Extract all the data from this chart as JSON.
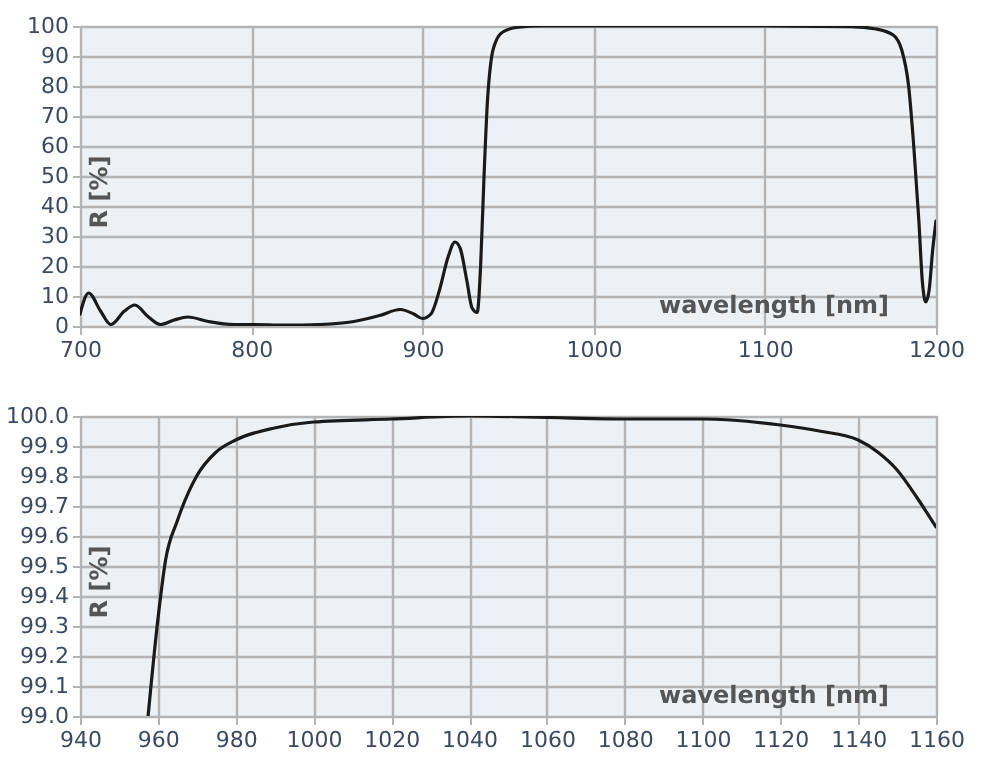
{
  "chart_data": [
    {
      "type": "line",
      "xlabel": "wavelength [nm]",
      "ylabel": "R [%]",
      "xlim": [
        700,
        1200
      ],
      "ylim": [
        0,
        100
      ],
      "xticks": [
        700,
        800,
        900,
        1000,
        1100,
        1200
      ],
      "yticks": [
        0,
        10,
        20,
        30,
        40,
        50,
        60,
        70,
        80,
        90,
        100
      ],
      "grid": true,
      "line_style": "solid",
      "marker": "none",
      "series": [
        {
          "color": "#1a1a1a",
          "x": [
            700,
            705,
            712,
            718,
            726,
            732,
            740,
            747,
            755,
            763,
            775,
            790,
            800,
            820,
            840,
            860,
            875,
            887,
            895,
            900,
            905,
            910,
            915,
            919,
            922,
            926,
            929,
            932,
            934,
            936,
            938,
            940,
            943,
            947,
            955,
            970,
            1100,
            1150,
            1165,
            1175,
            1180,
            1184,
            1187,
            1190,
            1192,
            1194,
            1196,
            1198,
            1200
          ],
          "values": [
            4,
            11,
            5,
            0.5,
            5,
            7,
            3,
            0.5,
            2,
            3,
            1.5,
            0.5,
            0.5,
            0.3,
            0.5,
            1.5,
            3.5,
            5.5,
            4,
            2.5,
            4,
            12,
            23,
            28,
            26,
            15,
            6,
            4.5,
            20,
            50,
            75,
            88,
            95,
            98,
            99.5,
            100,
            100,
            99.8,
            99,
            97,
            92,
            80,
            60,
            35,
            15,
            8,
            12,
            25,
            35
          ]
        }
      ]
    },
    {
      "type": "line",
      "xlabel": "wavelength [nm]",
      "ylabel": "R [%]",
      "xlim": [
        940,
        1160
      ],
      "ylim": [
        99.0,
        100.0
      ],
      "xticks": [
        940,
        960,
        980,
        1000,
        1020,
        1040,
        1060,
        1080,
        1100,
        1120,
        1140,
        1160
      ],
      "yticks": [
        {
          "value": 99.0,
          "label": "99.0"
        },
        99.1,
        99.2,
        99.3,
        99.4,
        99.5,
        99.6,
        99.7,
        99.8,
        99.9,
        {
          "value": 100.0,
          "label": "100.0"
        }
      ],
      "grid": true,
      "line_style": "solid",
      "marker": "none",
      "series": [
        {
          "color": "#1a1a1a",
          "x": [
            957.5,
            960,
            962,
            965,
            970,
            975,
            980,
            990,
            1000,
            1020,
            1040,
            1080,
            1100,
            1120,
            1130,
            1140,
            1145,
            1150,
            1155,
            1160
          ],
          "values": [
            99.0,
            99.32,
            99.52,
            99.65,
            99.8,
            99.88,
            99.92,
            99.96,
            99.98,
            99.99,
            100.0,
            99.99,
            99.99,
            99.97,
            99.95,
            99.92,
            99.88,
            99.82,
            99.73,
            99.63
          ]
        }
      ]
    }
  ]
}
